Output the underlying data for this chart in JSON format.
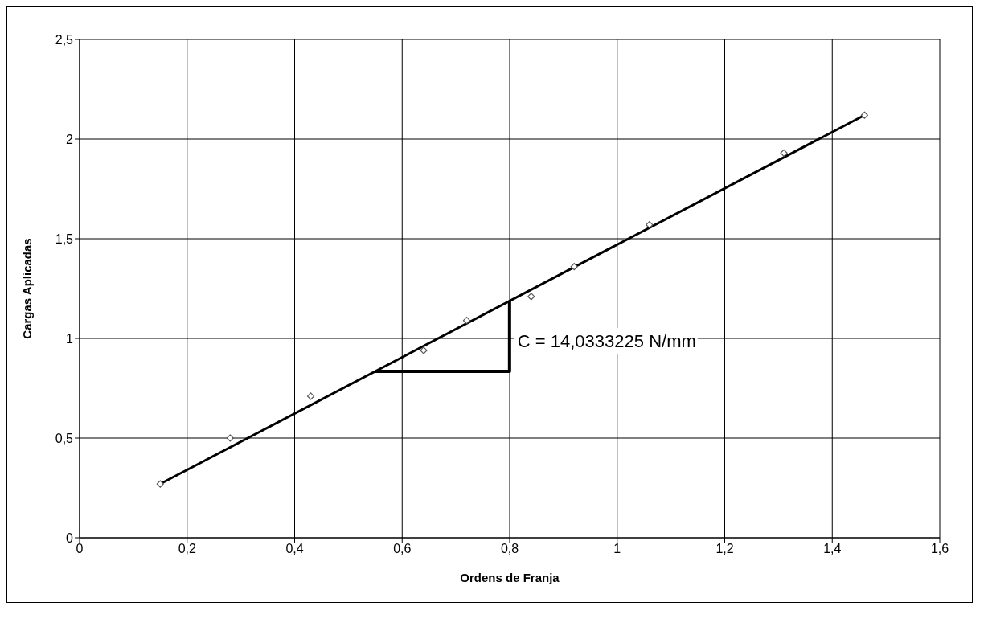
{
  "chart_data": {
    "type": "scatter",
    "xlabel": "Ordens de Franja",
    "ylabel": "Cargas Aplicadas",
    "xlim": [
      0,
      1.6
    ],
    "xticks": [
      0,
      {
        "value": 0.2,
        "label": "0,2"
      },
      {
        "value": 0.4,
        "label": "0,4"
      },
      {
        "value": 0.6,
        "label": "0,6"
      },
      {
        "value": 0.8,
        "label": "0,8"
      },
      1,
      {
        "value": 1.2,
        "label": "1,2"
      },
      {
        "value": 1.4,
        "label": "1,4"
      },
      {
        "value": 1.6,
        "label": "1,6"
      }
    ],
    "ylim": [
      0,
      2.5
    ],
    "yticks": [
      0,
      {
        "value": 0.5,
        "label": "0,5"
      },
      1,
      {
        "value": 1.5,
        "label": "1,5"
      },
      2,
      {
        "value": 2.5,
        "label": "2,5"
      }
    ],
    "grid": true,
    "legend": false,
    "marker": "diamond",
    "series": [
      {
        "color": "#555555",
        "x": [
          0.15,
          0.28,
          0.43,
          0.64,
          0.72,
          0.84,
          0.92,
          1.06,
          1.31,
          1.46
        ],
        "values": [
          0.27,
          0.5,
          0.71,
          0.94,
          1.09,
          1.21,
          1.36,
          1.57,
          1.93,
          2.12
        ]
      },
      {
        "type": "line",
        "color": "#000000",
        "marker": "none",
        "x": [
          0.15,
          1.46
        ],
        "values": [
          0.27,
          2.12
        ]
      }
    ],
    "annotations": [
      "C = 14,0333225 N/mm"
    ]
  }
}
